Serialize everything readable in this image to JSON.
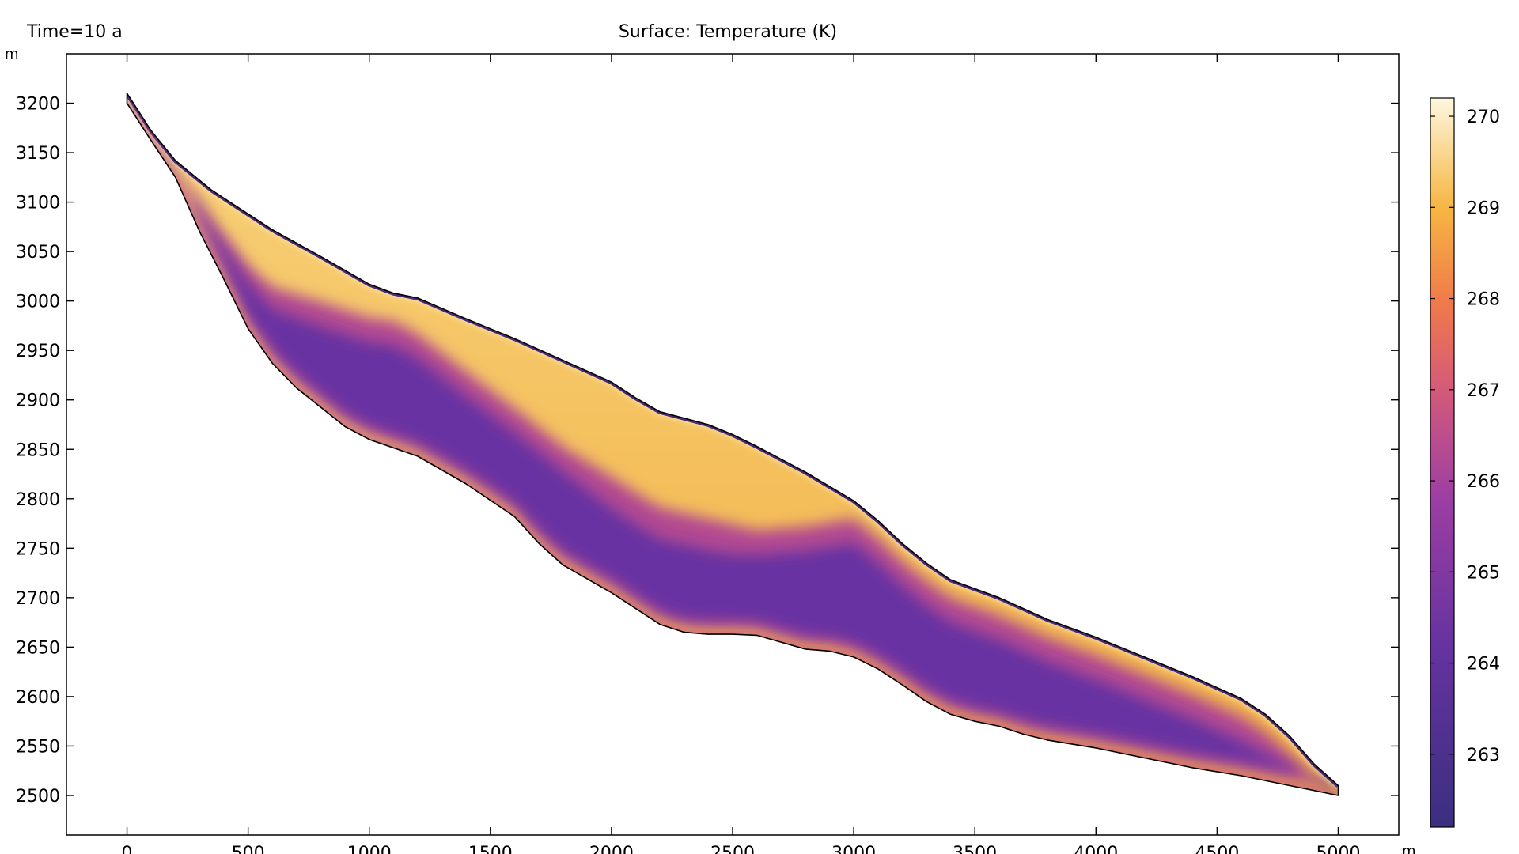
{
  "chart_data": {
    "type": "heatmap",
    "time_label": "Time=10 a",
    "title": "Surface: Temperature (K)",
    "x_unit": "m",
    "y_unit": "m",
    "xlim": [
      -250,
      5250
    ],
    "ylim": [
      2460,
      3250
    ],
    "x_ticks": [
      0,
      500,
      1000,
      1500,
      2000,
      2500,
      3000,
      3500,
      4000,
      4500,
      5000
    ],
    "y_ticks": [
      2500,
      2550,
      2600,
      2650,
      2700,
      2750,
      2800,
      2850,
      2900,
      2950,
      3000,
      3050,
      3100,
      3150,
      3200
    ],
    "colorbar": {
      "min": 262.2,
      "max": 270.2,
      "ticks": [
        263,
        264,
        265,
        266,
        267,
        268,
        269,
        270
      ]
    },
    "upper_surface": [
      [
        0,
        3210
      ],
      [
        100,
        3172
      ],
      [
        200,
        3142
      ],
      [
        350,
        3112
      ],
      [
        500,
        3088
      ],
      [
        600,
        3072
      ],
      [
        800,
        3045
      ],
      [
        1000,
        3017
      ],
      [
        1100,
        3008
      ],
      [
        1200,
        3003
      ],
      [
        1400,
        2982
      ],
      [
        1600,
        2962
      ],
      [
        1800,
        2940
      ],
      [
        2000,
        2918
      ],
      [
        2100,
        2902
      ],
      [
        2200,
        2888
      ],
      [
        2400,
        2875
      ],
      [
        2500,
        2865
      ],
      [
        2600,
        2853
      ],
      [
        2800,
        2827
      ],
      [
        3000,
        2798
      ],
      [
        3100,
        2778
      ],
      [
        3200,
        2755
      ],
      [
        3300,
        2735
      ],
      [
        3400,
        2718
      ],
      [
        3600,
        2700
      ],
      [
        3800,
        2678
      ],
      [
        4000,
        2660
      ],
      [
        4200,
        2640
      ],
      [
        4400,
        2620
      ],
      [
        4600,
        2598
      ],
      [
        4700,
        2582
      ],
      [
        4800,
        2560
      ],
      [
        4900,
        2532
      ],
      [
        5000,
        2510
      ]
    ],
    "lower_surface": [
      [
        5000,
        2500
      ],
      [
        4800,
        2510
      ],
      [
        4600,
        2520
      ],
      [
        4400,
        2528
      ],
      [
        4200,
        2538
      ],
      [
        4000,
        2548
      ],
      [
        3800,
        2556
      ],
      [
        3700,
        2562
      ],
      [
        3600,
        2570
      ],
      [
        3500,
        2575
      ],
      [
        3400,
        2582
      ],
      [
        3300,
        2595
      ],
      [
        3200,
        2612
      ],
      [
        3100,
        2628
      ],
      [
        3000,
        2640
      ],
      [
        2900,
        2646
      ],
      [
        2800,
        2648
      ],
      [
        2700,
        2655
      ],
      [
        2600,
        2662
      ],
      [
        2500,
        2663
      ],
      [
        2400,
        2663
      ],
      [
        2300,
        2665
      ],
      [
        2200,
        2673
      ],
      [
        2000,
        2705
      ],
      [
        1800,
        2733
      ],
      [
        1700,
        2755
      ],
      [
        1600,
        2782
      ],
      [
        1400,
        2815
      ],
      [
        1200,
        2843
      ],
      [
        1000,
        2860
      ],
      [
        900,
        2873
      ],
      [
        700,
        2912
      ],
      [
        600,
        2937
      ],
      [
        500,
        2972
      ],
      [
        400,
        3022
      ],
      [
        300,
        3070
      ],
      [
        200,
        3125
      ],
      [
        100,
        3162
      ],
      [
        0,
        3200
      ]
    ]
  }
}
